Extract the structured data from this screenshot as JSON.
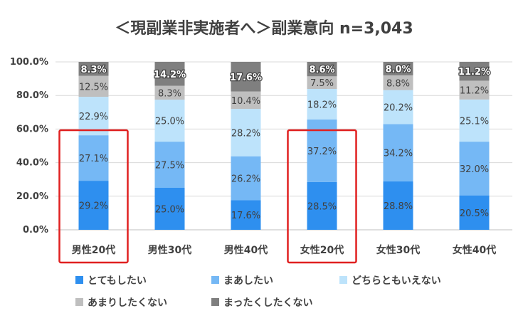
{
  "chart_data": {
    "type": "bar",
    "stacked": true,
    "title": "＜現副業非実施者へ＞副業意向 n=3,043",
    "categories": [
      "男性20代",
      "男性30代",
      "男性40代",
      "女性20代",
      "女性30代",
      "女性40代"
    ],
    "series": [
      {
        "name": "とてもしたい",
        "color": "#2E8FEF",
        "values": [
          29.2,
          25.0,
          17.6,
          28.5,
          28.8,
          20.5
        ]
      },
      {
        "name": "まあしたい",
        "color": "#75B8F5",
        "values": [
          27.1,
          27.5,
          26.2,
          37.2,
          34.2,
          32.0
        ]
      },
      {
        "name": "どちらともいえない",
        "color": "#BDE3FB",
        "values": [
          22.9,
          25.0,
          28.2,
          18.2,
          20.2,
          25.1
        ]
      },
      {
        "name": "あまりしたくない",
        "color": "#BFBFBF",
        "values": [
          12.5,
          8.3,
          10.4,
          7.5,
          8.8,
          11.2
        ]
      },
      {
        "name": "まったくしたくない",
        "color": "#7F7F7F",
        "values": [
          8.3,
          14.2,
          17.6,
          8.6,
          8.0,
          11.2
        ]
      }
    ],
    "yticks": [
      "100.0%",
      "80.0%",
      "60.0%",
      "40.0%",
      "20.0%",
      "0.0%"
    ],
    "ylim": [
      0,
      100
    ],
    "highlighted_categories": [
      "男性20代",
      "女性20代"
    ],
    "highlight_color": "#E02020",
    "legend_position": "bottom"
  }
}
